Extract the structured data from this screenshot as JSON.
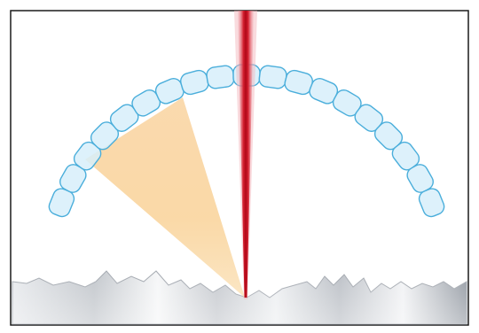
{
  "diagram": {
    "colors": {
      "frame": "#1a1a1a",
      "background": "#ffffff",
      "cell_fill": "#d7eefa",
      "cell_stroke": "#4aaedb",
      "laser_core": "#c8101e",
      "laser_edge": "#f0a0a8",
      "light_cone_top": "#f7c880",
      "light_cone_bottom": "#fde8c6",
      "surface_light": "#f3f4f6",
      "surface_dark": "#9fa4ab"
    },
    "cell_count": 19
  }
}
